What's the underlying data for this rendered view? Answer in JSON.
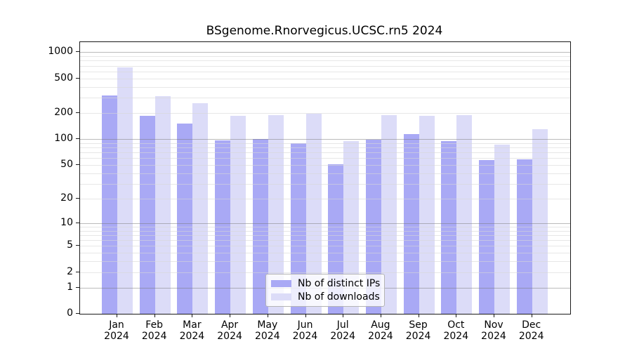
{
  "title": "BSgenome.Rnorvegicus.UCSC.rn5 2024",
  "chart_data": {
    "type": "bar",
    "title": "BSgenome.Rnorvegicus.UCSC.rn5 2024",
    "categories": [
      "Jan",
      "Feb",
      "Mar",
      "Apr",
      "May",
      "Jun",
      "Jul",
      "Aug",
      "Sep",
      "Oct",
      "Nov",
      "Dec"
    ],
    "year_label": "2024",
    "series": [
      {
        "name": "Nb of distinct IPs",
        "color": "#a9a9f5",
        "values": [
          320,
          185,
          150,
          96,
          100,
          90,
          51,
          99,
          115,
          95,
          57,
          58
        ]
      },
      {
        "name": "Nb of downloads",
        "color": "#dcdcf8",
        "values": [
          665,
          310,
          260,
          185,
          190,
          195,
          95,
          188,
          185,
          190,
          87,
          130
        ]
      }
    ],
    "xlabel": "",
    "ylabel": "",
    "y_scale": "log1p",
    "ylim": [
      0,
      1000
    ],
    "y_ticks": [
      0,
      1,
      2,
      5,
      10,
      20,
      50,
      100,
      200,
      500,
      1000
    ],
    "grid": "horizontal",
    "grid_major_at": [
      1,
      10,
      100,
      1000
    ],
    "legend_position": "inside-bottom-center"
  },
  "colors": {
    "series_dark": "#a9a9f5",
    "series_light": "#dcdcf8",
    "grid_major": "#a8a8a8",
    "grid_minor": "#e6e6e6",
    "axis": "#1a1a1a",
    "background": "#ffffff"
  }
}
